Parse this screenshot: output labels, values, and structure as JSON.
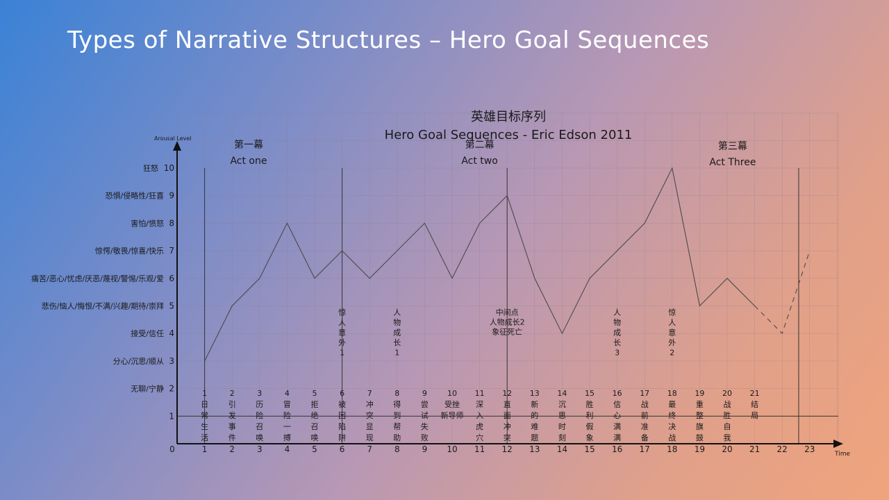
{
  "slide": {
    "title": "Types of Narrative Structures – Hero Goal Sequences"
  },
  "chart_data": {
    "type": "line",
    "title": "英雄目标序列",
    "subtitle": "Hero Goal Sequences - Eric Edson 2011",
    "xlabel": "Time",
    "ylabel": "Arousal Level",
    "xlim": [
      0,
      23
    ],
    "ylim": [
      0,
      10
    ],
    "grid": true,
    "x_ticks": [
      "0",
      "1",
      "2",
      "3",
      "4",
      "5",
      "6",
      "7",
      "8",
      "9",
      "10",
      "11",
      "12",
      "13",
      "14",
      "15",
      "16",
      "17",
      "18",
      "19",
      "20",
      "21",
      "22",
      "23"
    ],
    "y_ticks": [
      "0",
      "1",
      "2",
      "3",
      "4",
      "5",
      "6",
      "7",
      "8",
      "9",
      "10"
    ],
    "y_emotion_labels": [
      {
        "y": 10,
        "text": "狂怒"
      },
      {
        "y": 9,
        "text": "恐惧/侵略性/狂喜"
      },
      {
        "y": 8,
        "text": "害怕/愤怒"
      },
      {
        "y": 7,
        "text": "惊愕/敬畏/惊喜/快乐"
      },
      {
        "y": 6,
        "text": "痛苦/恶心/忧虑/厌恶/蔑视/警惕/乐观/爱"
      },
      {
        "y": 5,
        "text": "悲伤/恼人/悔恨/不满/兴趣/期待/崇拜"
      },
      {
        "y": 4,
        "text": "接受/信任"
      },
      {
        "y": 3,
        "text": "分心/沉思/顺从"
      },
      {
        "y": 2,
        "text": "无聊/宁静"
      }
    ],
    "series": [
      {
        "x": [
          1,
          2,
          3,
          4,
          5,
          6,
          7,
          8,
          9,
          10,
          11,
          12,
          13,
          14,
          15,
          16,
          17,
          18,
          19,
          20,
          21
        ],
        "y": [
          3,
          5,
          6,
          8,
          6,
          7,
          6,
          7,
          8,
          6,
          8,
          9,
          6,
          4,
          6,
          7,
          8,
          10,
          5,
          6,
          5
        ],
        "style": "solid"
      },
      {
        "x": [
          21,
          22,
          23
        ],
        "y": [
          5,
          4,
          7
        ],
        "style": "dashed"
      }
    ],
    "acts": [
      {
        "zh": "第一幕",
        "en": "Act one",
        "x": 2.6,
        "y": 10.5
      },
      {
        "zh": "第二幕",
        "en": "Act two",
        "x": 11.0,
        "y": 10.5
      },
      {
        "zh": "第三幕",
        "en": "Act Three",
        "x": 20.2,
        "y": 10.45
      }
    ],
    "act_lines": [
      {
        "x": 1,
        "y_top": 10
      },
      {
        "x": 6,
        "y_top": 10
      },
      {
        "x": 12,
        "y_top": 10
      },
      {
        "x": 22.6,
        "y_top": 10
      }
    ],
    "turning_points": [
      {
        "x": 6,
        "lines": [
          "惊",
          "人",
          "意",
          "外",
          "1"
        ],
        "vertical": true,
        "y_start": 4.8
      },
      {
        "x": 8,
        "lines": [
          "人",
          "物",
          "成",
          "长",
          "1"
        ],
        "vertical": true,
        "y_start": 4.8
      },
      {
        "x": 12,
        "lines": [
          "中间点",
          "人物成长2",
          "象征死亡"
        ],
        "vertical": false,
        "y_start": 4.8
      },
      {
        "x": 16,
        "lines": [
          "人",
          "物",
          "成",
          "长",
          "3"
        ],
        "vertical": true,
        "y_start": 4.8
      },
      {
        "x": 18,
        "lines": [
          "惊",
          "人",
          "意",
          "外",
          "2"
        ],
        "vertical": true,
        "y_start": 4.8
      }
    ],
    "sequence_steps": [
      {
        "n": "1",
        "lines": [
          "日",
          "常",
          "生",
          "活"
        ]
      },
      {
        "n": "2",
        "lines": [
          "引",
          "发",
          "事",
          "件"
        ]
      },
      {
        "n": "3",
        "lines": [
          "历",
          "险",
          "召",
          "唤"
        ]
      },
      {
        "n": "4",
        "lines": [
          "冒",
          "险",
          "一",
          "搏"
        ]
      },
      {
        "n": "5",
        "lines": [
          "拒",
          "绝",
          "召",
          "唤"
        ]
      },
      {
        "n": "6",
        "lines": [
          "被",
          "困",
          "陷",
          "阱"
        ]
      },
      {
        "n": "7",
        "lines": [
          "冲",
          "突",
          "显",
          "现"
        ]
      },
      {
        "n": "8",
        "lines": [
          "得",
          "到",
          "帮",
          "助"
        ]
      },
      {
        "n": "9",
        "lines": [
          "尝",
          "试",
          "失",
          "败"
        ]
      },
      {
        "n": "10",
        "lines": [
          "受挫",
          "新导师"
        ]
      },
      {
        "n": "11",
        "lines": [
          "深",
          "入",
          "虎",
          "穴"
        ]
      },
      {
        "n": "12",
        "lines": [
          "直",
          "面",
          "冲",
          "突"
        ]
      },
      {
        "n": "13",
        "lines": [
          "新",
          "的",
          "难",
          "题"
        ]
      },
      {
        "n": "14",
        "lines": [
          "沉",
          "思",
          "时",
          "刻"
        ]
      },
      {
        "n": "15",
        "lines": [
          "胜",
          "利",
          "假",
          "象"
        ]
      },
      {
        "n": "16",
        "lines": [
          "信",
          "心",
          "满",
          "满"
        ]
      },
      {
        "n": "17",
        "lines": [
          "战",
          "前",
          "准",
          "备"
        ]
      },
      {
        "n": "18",
        "lines": [
          "最",
          "终",
          "决",
          "战"
        ]
      },
      {
        "n": "19",
        "lines": [
          "重",
          "整",
          "旗",
          "鼓"
        ]
      },
      {
        "n": "20",
        "lines": [
          "战",
          "胜",
          "自",
          "我"
        ]
      },
      {
        "n": "21",
        "lines": [
          "结",
          "局"
        ]
      }
    ]
  }
}
